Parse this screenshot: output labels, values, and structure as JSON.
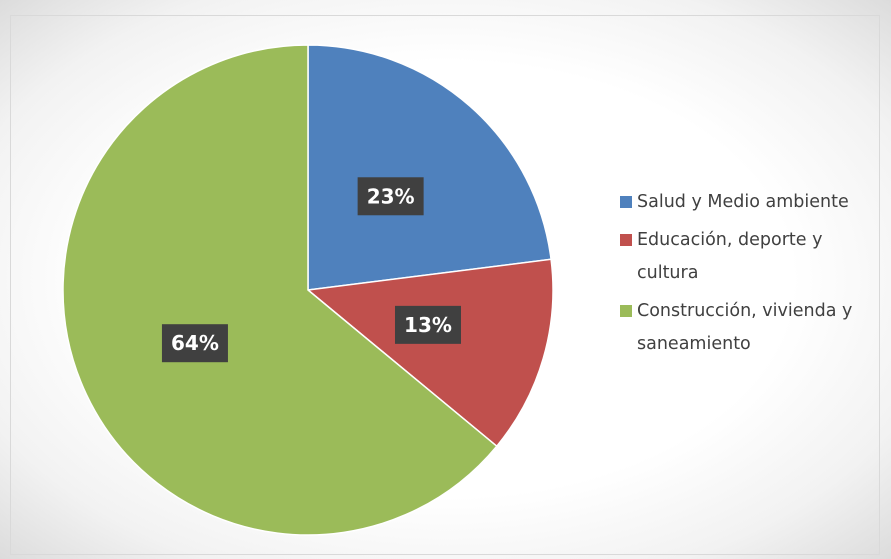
{
  "chart_data": {
    "type": "pie",
    "categories": [
      "Salud y Medio ambiente",
      "Educación, deporte y cultura",
      "Construcción, vivienda y saneamiento"
    ],
    "values": [
      23,
      13,
      64
    ],
    "value_labels": [
      "23%",
      "13%",
      "64%"
    ],
    "colors": [
      "#4f81bd",
      "#c0504d",
      "#9bbb59"
    ],
    "legend": "right"
  }
}
